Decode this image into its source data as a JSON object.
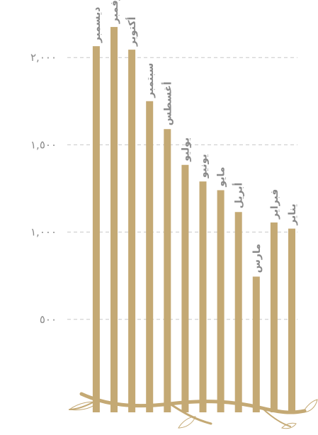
{
  "chart_data": {
    "type": "bar",
    "categories": [
      "يناير",
      "فبراير",
      "مارس",
      "أبريل",
      "مايو",
      "يونيو",
      "يوليو",
      "أغسطس",
      "سبتمبر",
      "أكتوبر",
      "نوفمبر",
      "ديسمبر"
    ],
    "values": [
      1020,
      1055,
      745,
      1115,
      1240,
      1290,
      1385,
      1590,
      1750,
      2045,
      2175,
      2065
    ],
    "ylim": [
      0,
      2500
    ],
    "yticks": [
      500,
      1000,
      1500,
      2000
    ],
    "ytick_labels": [
      "٥٠٠",
      "١,٠٠٠",
      "١,٥٠٠",
      "٢,٠٠٠"
    ],
    "category_order": "right-to-left",
    "grid": true,
    "colors": {
      "bar": "#c4a974",
      "grid": "#c8c8c8",
      "text": "#8a8a8a",
      "branch": "#c4a974"
    }
  }
}
